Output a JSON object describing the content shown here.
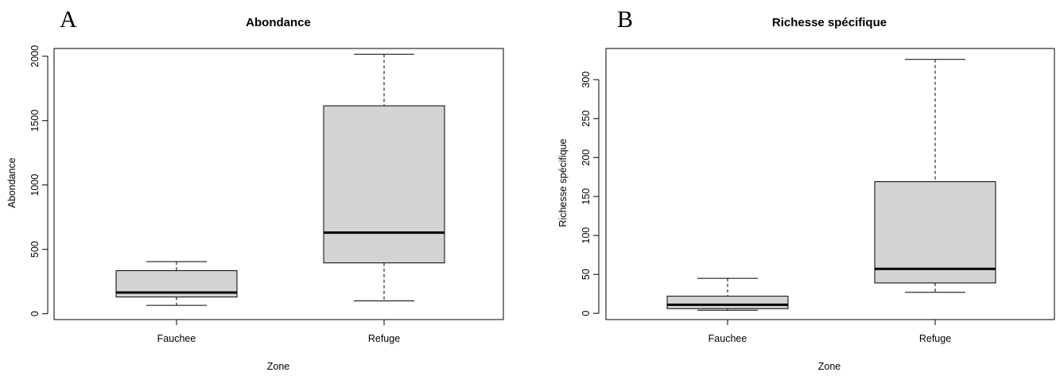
{
  "chart_data": [
    {
      "panel": "A",
      "type": "boxplot",
      "title": "Abondance",
      "xlabel": "Zone",
      "ylabel": "Abondance",
      "categories": [
        "Fauchee",
        "Refuge"
      ],
      "yticks": [
        0,
        500,
        1000,
        1500,
        2000
      ],
      "ylim": [
        -45,
        2060
      ],
      "boxes": [
        {
          "category": "Fauchee",
          "min": 65,
          "q1": 130,
          "median": 165,
          "q3": 335,
          "max": 405
        },
        {
          "category": "Refuge",
          "min": 100,
          "q1": 395,
          "median": 630,
          "q3": 1615,
          "max": 2015
        }
      ],
      "box_color": "#d3d3d3"
    },
    {
      "panel": "B",
      "type": "boxplot",
      "title": "Richesse spécifique",
      "xlabel": "Zone",
      "ylabel": "Richesse spécifique",
      "categories": [
        "Fauchee",
        "Refuge"
      ],
      "yticks": [
        0,
        50,
        100,
        150,
        200,
        250,
        300
      ],
      "ylim": [
        -8,
        340
      ],
      "boxes": [
        {
          "category": "Fauchee",
          "min": 4,
          "q1": 6,
          "median": 11,
          "q3": 22,
          "max": 45
        },
        {
          "category": "Refuge",
          "min": 27,
          "q1": 39,
          "median": 57,
          "q3": 169,
          "max": 326
        }
      ],
      "box_color": "#d3d3d3"
    }
  ]
}
